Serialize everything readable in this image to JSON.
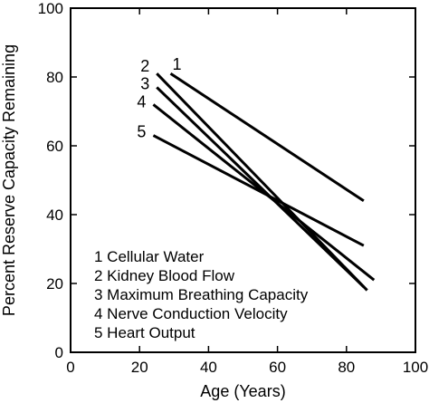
{
  "chart_data": {
    "type": "line",
    "title": "",
    "xlabel": "Age (Years)",
    "ylabel": "Percent Reserve Capacity Remaining",
    "xlim": [
      0,
      100
    ],
    "ylim": [
      0,
      100
    ],
    "xticks": [
      "0",
      "20",
      "40",
      "60",
      "80",
      "100"
    ],
    "yticks": [
      "0",
      "20",
      "40",
      "60",
      "80",
      "100"
    ],
    "grid": false,
    "legend_position": "bottom-left",
    "line_color": "#000000",
    "series": [
      {
        "label": "1",
        "legend": "1 Cellular Water",
        "x": [
          29,
          85
        ],
        "y": [
          81,
          44
        ]
      },
      {
        "label": "2",
        "legend": "2 Kidney Blood Flow",
        "x": [
          25,
          86
        ],
        "y": [
          81,
          18
        ]
      },
      {
        "label": "3",
        "legend": "3 Maximum Breathing Capacity",
        "x": [
          25,
          85
        ],
        "y": [
          77,
          19
        ]
      },
      {
        "label": "4",
        "legend": "4 Nerve Conduction Velocity",
        "x": [
          24,
          88
        ],
        "y": [
          72,
          21
        ]
      },
      {
        "label": "5",
        "legend": "5 Heart Output",
        "x": [
          24,
          85
        ],
        "y": [
          63,
          31
        ]
      }
    ]
  }
}
